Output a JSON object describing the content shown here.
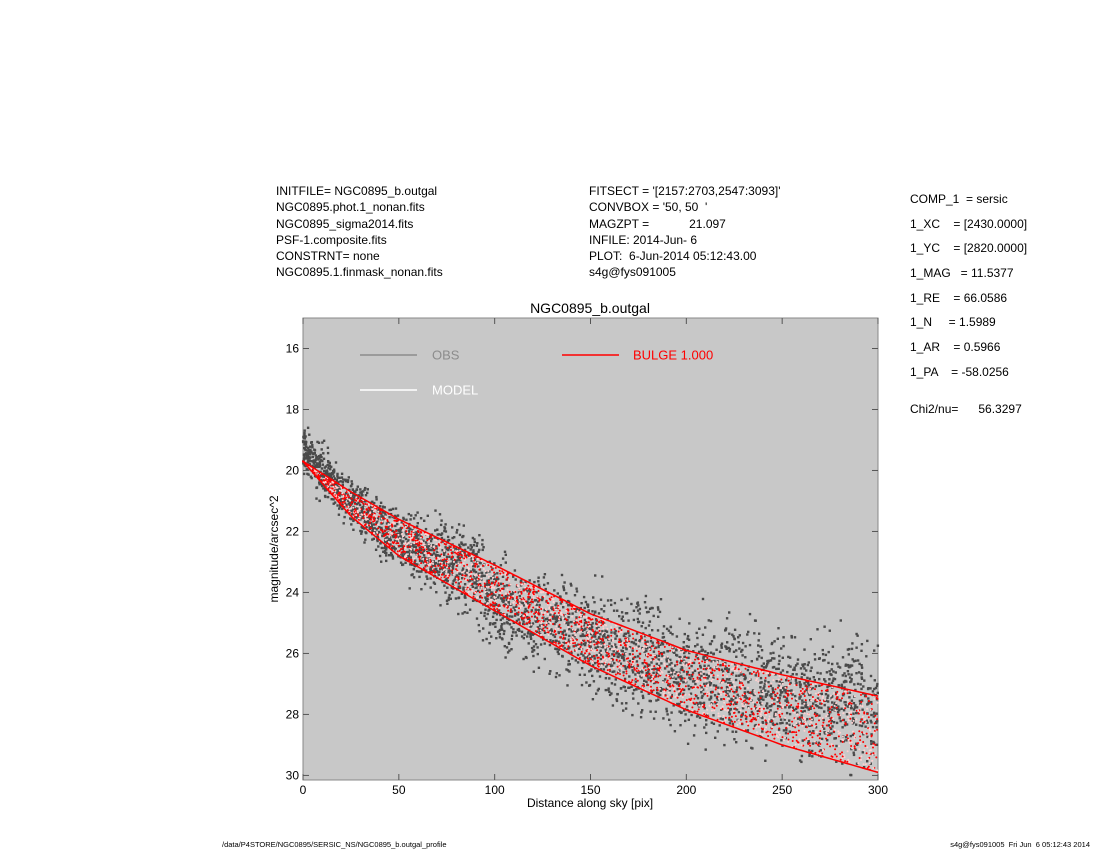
{
  "header": {
    "left": [
      "INITFILE= NGC0895_b.outgal",
      "NGC0895.phot.1_nonan.fits",
      "NGC0895_sigma2014.fits",
      "PSF-1.composite.fits",
      "CONSTRNT= none",
      "NGC0895.1.finmask_nonan.fits"
    ],
    "middle": [
      "FITSECT = '[2157:2703,2547:3093]'",
      "CONVBOX = '50, 50  '",
      "MAGZPT =            21.097",
      "INFILE: 2014-Jun- 6",
      "PLOT:  6-Jun-2014 05:12:43.00",
      "s4g@fys091005"
    ],
    "params": [
      "COMP_1  = sersic",
      "1_XC    = [2430.0000]",
      "1_YC    = [2820.0000]",
      "1_MAG   = 11.5377",
      "1_RE    = 66.0586",
      "1_N     = 1.5989",
      "1_AR    = 0.5966",
      "1_PA    = -58.0256"
    ],
    "chi2": "Chi2/nu=      56.3297"
  },
  "footer": {
    "path": "/data/P4STORE/NGC0895/SERSIC_NS/NGC0895_b.outgal_profile",
    "stamp": "s4g@fys091005  Fri Jun  6 05:12:43 2014"
  },
  "colors": {
    "background": "#c8c8c8",
    "obs": "#4a4a4a",
    "model": "#ffffff",
    "bulge": "#ff0000",
    "legend_obs": "#8c8c8c"
  },
  "chart_data": {
    "type": "scatter",
    "title": "NGC0895_b.outgal",
    "xlabel": "Distance along sky [pix]",
    "ylabel": "magnitude/arcsec^2",
    "xlim": [
      0,
      300
    ],
    "ylim": [
      30.15,
      15
    ],
    "xticks": [
      "0",
      "50",
      "100",
      "150",
      "200",
      "250",
      "300"
    ],
    "yticks": [
      "16",
      "18",
      "20",
      "22",
      "24",
      "26",
      "28",
      "30"
    ],
    "grid": false,
    "legend": {
      "placement": "top",
      "entries": [
        {
          "label": "OBS",
          "color": "#8c8c8c"
        },
        {
          "label": "MODEL",
          "color": "#ffffff"
        },
        {
          "label": "BULGE  1.000",
          "color": "#ff0000"
        }
      ]
    },
    "bulge_band": {
      "x": [
        0,
        25,
        50,
        100,
        150,
        200,
        250,
        300
      ],
      "bright_edge": [
        19.7,
        20.7,
        21.6,
        23.1,
        24.7,
        25.9,
        26.7,
        27.4
      ],
      "faint_edge": [
        19.7,
        21.5,
        22.8,
        24.6,
        26.4,
        27.85,
        29.0,
        29.9
      ]
    },
    "obs_trend": {
      "x": [
        0,
        5,
        25,
        50,
        75,
        100,
        150,
        200,
        250,
        300
      ],
      "center": [
        19.5,
        19.7,
        21.0,
        22.4,
        23.2,
        24.3,
        25.6,
        26.6,
        27.3,
        27.8
      ],
      "spread": [
        0.5,
        0.8,
        0.7,
        0.9,
        1.1,
        1.4,
        1.6,
        1.8,
        1.9,
        2.0
      ]
    }
  }
}
